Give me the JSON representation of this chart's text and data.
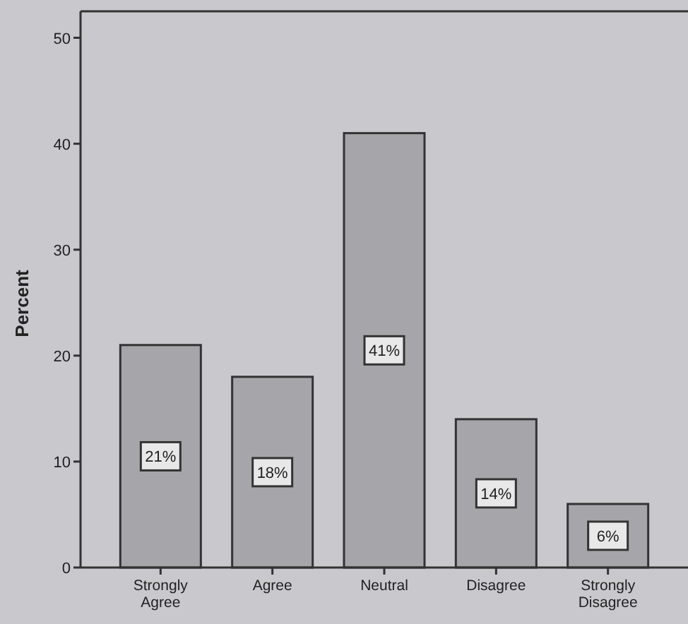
{
  "chart_data": {
    "type": "bar",
    "ylabel": "Percent",
    "categories": [
      "Strongly Agree",
      "Agree",
      "Neutral",
      "Disagree",
      "Strongly Disagree"
    ],
    "values": [
      21,
      18,
      41,
      14,
      6
    ],
    "value_labels": [
      "21%",
      "18%",
      "41%",
      "14%",
      "6%"
    ],
    "color": "#a6a6aa",
    "ylim": [
      0,
      52.5
    ],
    "yticks": [
      0,
      10,
      20,
      30,
      40,
      50
    ],
    "grid": false
  }
}
